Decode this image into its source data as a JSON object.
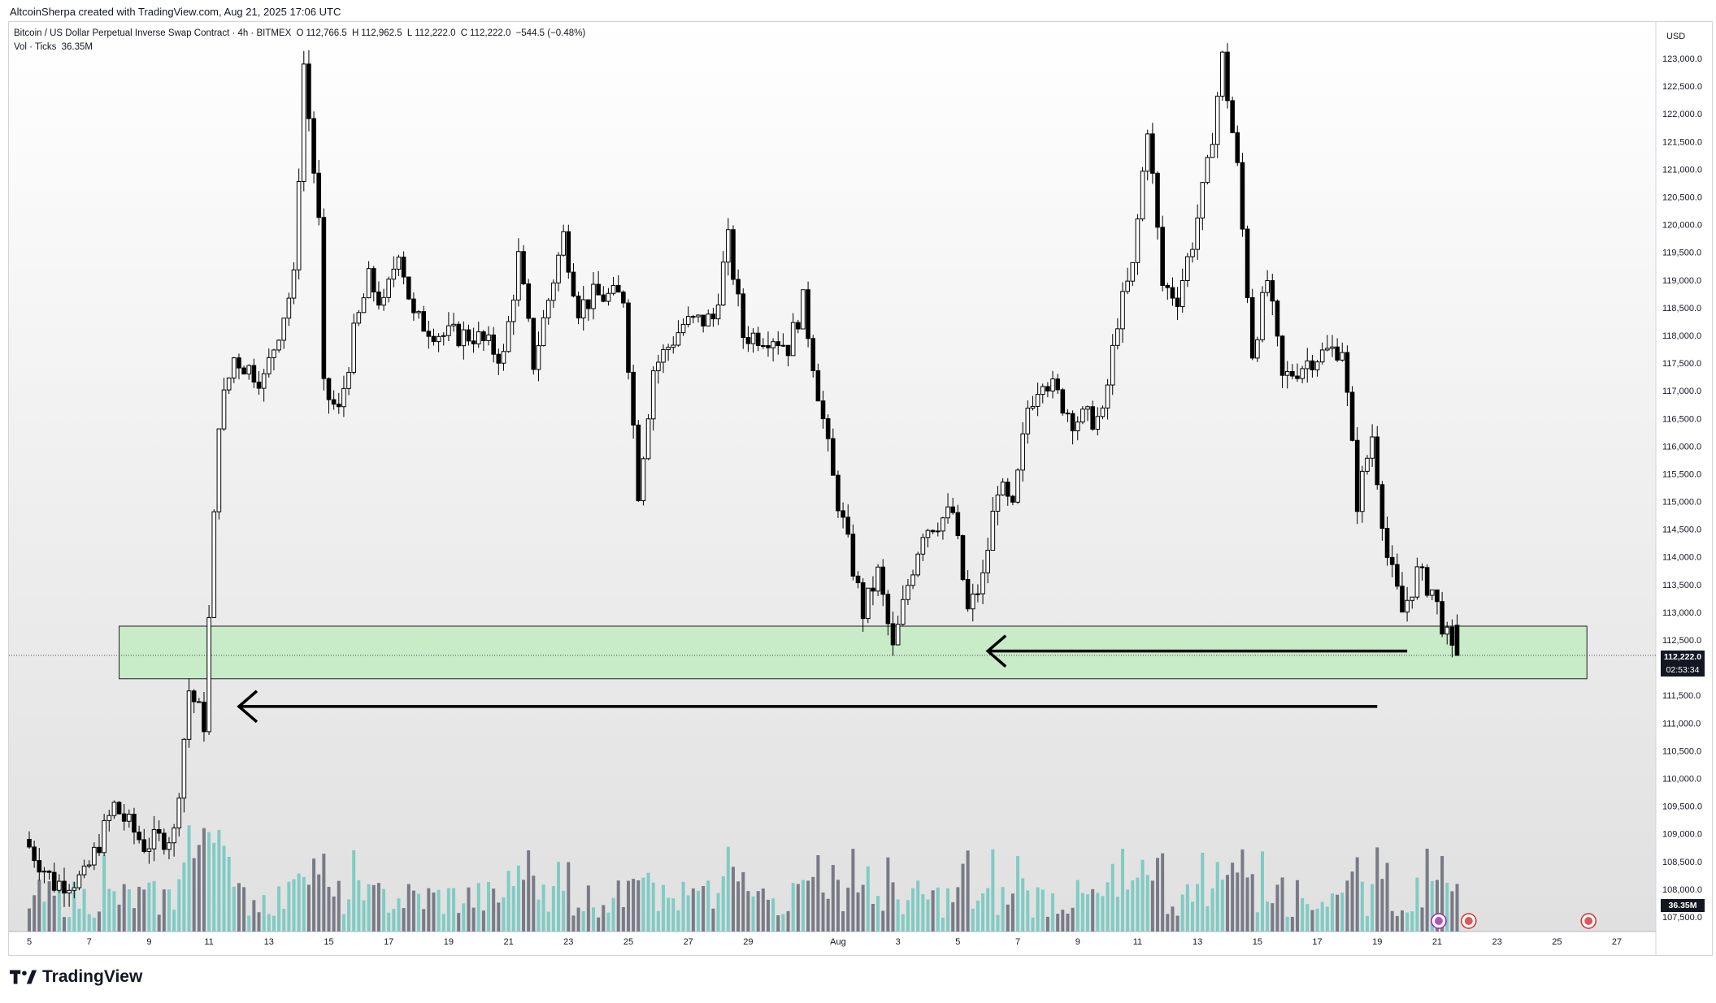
{
  "caption": "AltcoinSherpa created with TradingView.com, Aug 21, 2025 17:06 UTC",
  "legend": {
    "symbol": "Bitcoin / US Dollar Perpetual Inverse Swap Contract · 4h · BITMEX",
    "open_label": "O",
    "open": "112,766.5",
    "high_label": "H",
    "high": "112,962.5",
    "low_label": "L",
    "low": "112,222.0",
    "close_label": "C",
    "close": "112,222.0",
    "change": "−544.5 (−0.48%)",
    "vol_label": "Vol · Ticks",
    "vol_value": "36.35M"
  },
  "price_tag": {
    "price": "112,222.0",
    "countdown": "02:53:34"
  },
  "volume_tag": "36.35M",
  "brand": "TradingView",
  "colors": {
    "up_candle": "#ffffff",
    "down_candle": "#000000",
    "vol_up": "#80cbc4",
    "vol_down": "#787b86",
    "zone_fill": "#c8ebc8",
    "zone_border": "#1e1e1e",
    "arrow": "#000000"
  },
  "chart_data": {
    "type": "candlestick",
    "interval": "4h",
    "y_axis": {
      "currency": "USD",
      "ticks": [
        "123,000.0",
        "122,500.0",
        "122,000.0",
        "121,500.0",
        "121,000.0",
        "120,500.0",
        "120,000.0",
        "119,500.0",
        "119,000.0",
        "118,500.0",
        "118,000.0",
        "117,500.0",
        "117,000.0",
        "116,500.0",
        "116,000.0",
        "115,500.0",
        "115,000.0",
        "114,500.0",
        "114,000.0",
        "113,500.0",
        "113,000.0",
        "112,500.0",
        "112,000.0",
        "111,500.0",
        "111,000.0",
        "110,500.0",
        "110,000.0",
        "109,500.0",
        "109,000.0",
        "108,500.0",
        "108,000.0",
        "107,500.0"
      ],
      "min": 107500,
      "max": 123000
    },
    "x_axis": {
      "ticks": [
        "5",
        "7",
        "9",
        "11",
        "13",
        "15",
        "17",
        "19",
        "21",
        "23",
        "25",
        "27",
        "29",
        "Aug",
        "3",
        "5",
        "7",
        "9",
        "11",
        "13",
        "15",
        "17",
        "19",
        "21",
        "23",
        "25",
        "27"
      ]
    },
    "price_anchors": [
      {
        "date": "Jul 5",
        "price": 108900
      },
      {
        "date": "Jul 6",
        "price": 108100
      },
      {
        "date": "Jul 7",
        "price": 108200
      },
      {
        "date": "Jul 8",
        "price": 109500
      },
      {
        "date": "Jul 9",
        "price": 108800
      },
      {
        "date": "Jul 10",
        "price": 109000
      },
      {
        "date": "Jul 10 12h",
        "price": 111600
      },
      {
        "date": "Jul 11",
        "price": 111000
      },
      {
        "date": "Jul 11 12h",
        "price": 116500
      },
      {
        "date": "Jul 12",
        "price": 117600
      },
      {
        "date": "Jul 13",
        "price": 117200
      },
      {
        "date": "Jul 14",
        "price": 119000
      },
      {
        "date": "Jul 14 08h",
        "price": 122900
      },
      {
        "date": "Jul 14 20h",
        "price": 120000
      },
      {
        "date": "Jul 15",
        "price": 117000
      },
      {
        "date": "Jul 15 12h",
        "price": 116600
      },
      {
        "date": "Jul 16",
        "price": 118000
      },
      {
        "date": "Jul 16 12h",
        "price": 119000
      },
      {
        "date": "Jul 17",
        "price": 118500
      },
      {
        "date": "Jul 17 12h",
        "price": 119600
      },
      {
        "date": "Jul 18",
        "price": 118300
      },
      {
        "date": "Jul 19",
        "price": 118000
      },
      {
        "date": "Jul 20",
        "price": 118000
      },
      {
        "date": "Jul 21",
        "price": 117600
      },
      {
        "date": "Jul 21 12h",
        "price": 119400
      },
      {
        "date": "Jul 22",
        "price": 117500
      },
      {
        "date": "Jul 23",
        "price": 119800
      },
      {
        "date": "Jul 23 12h",
        "price": 118500
      },
      {
        "date": "Jul 24",
        "price": 118700
      },
      {
        "date": "Jul 25",
        "price": 118700
      },
      {
        "date": "Jul 25 12h",
        "price": 115200
      },
      {
        "date": "Jul 26",
        "price": 117400
      },
      {
        "date": "Jul 27",
        "price": 118200
      },
      {
        "date": "Jul 28",
        "price": 118300
      },
      {
        "date": "Jul 28 12h",
        "price": 119700
      },
      {
        "date": "Jul 29",
        "price": 118000
      },
      {
        "date": "Jul 30",
        "price": 118000
      },
      {
        "date": "Jul 30 12h",
        "price": 117800
      },
      {
        "date": "Jul 31",
        "price": 118600
      },
      {
        "date": "Aug 1",
        "price": 115400
      },
      {
        "date": "Aug 2",
        "price": 113000
      },
      {
        "date": "Aug 2 12h",
        "price": 113700
      },
      {
        "date": "Aug 3",
        "price": 112300
      },
      {
        "date": "Aug 3 12h",
        "price": 113500
      },
      {
        "date": "Aug 4",
        "price": 114500
      },
      {
        "date": "Aug 5",
        "price": 114800
      },
      {
        "date": "Aug 5 12h",
        "price": 113000
      },
      {
        "date": "Aug 6",
        "price": 113600
      },
      {
        "date": "Aug 6 12h",
        "price": 115300
      },
      {
        "date": "Aug 7",
        "price": 114800
      },
      {
        "date": "Aug 7 12h",
        "price": 116700
      },
      {
        "date": "Aug 8",
        "price": 117300
      },
      {
        "date": "Aug 9",
        "price": 116500
      },
      {
        "date": "Aug 10",
        "price": 116500
      },
      {
        "date": "Aug 10 12h",
        "price": 118300
      },
      {
        "date": "Aug 11",
        "price": 119200
      },
      {
        "date": "Aug 11 12h",
        "price": 121800
      },
      {
        "date": "Aug 12",
        "price": 118900
      },
      {
        "date": "Aug 12 12h",
        "price": 118700
      },
      {
        "date": "Aug 13",
        "price": 119700
      },
      {
        "date": "Aug 13 12h",
        "price": 121000
      },
      {
        "date": "Aug 14",
        "price": 123000
      },
      {
        "date": "Aug 14 12h",
        "price": 121000
      },
      {
        "date": "Aug 15",
        "price": 117700
      },
      {
        "date": "Aug 15 12h",
        "price": 119000
      },
      {
        "date": "Aug 16",
        "price": 117200
      },
      {
        "date": "Aug 17",
        "price": 117600
      },
      {
        "date": "Aug 18",
        "price": 117800
      },
      {
        "date": "Aug 18 12h",
        "price": 115000
      },
      {
        "date": "Aug 19",
        "price": 116200
      },
      {
        "date": "Aug 19 12h",
        "price": 114000
      },
      {
        "date": "Aug 20",
        "price": 113000
      },
      {
        "date": "Aug 20 12h",
        "price": 113700
      },
      {
        "date": "Aug 21",
        "price": 113400
      },
      {
        "date": "Aug 21 16h",
        "price": 112222
      }
    ],
    "last_price": 112222,
    "support_zone": {
      "low": 111800,
      "high": 112750,
      "from": "Jul 8",
      "to": "Aug 26"
    },
    "arrows": [
      {
        "price": 112300,
        "from": "Aug 20",
        "to": "Aug 6",
        "direction": "left"
      },
      {
        "price": 111300,
        "from": "Aug 19",
        "to": "Jul 12",
        "direction": "left"
      }
    ]
  }
}
